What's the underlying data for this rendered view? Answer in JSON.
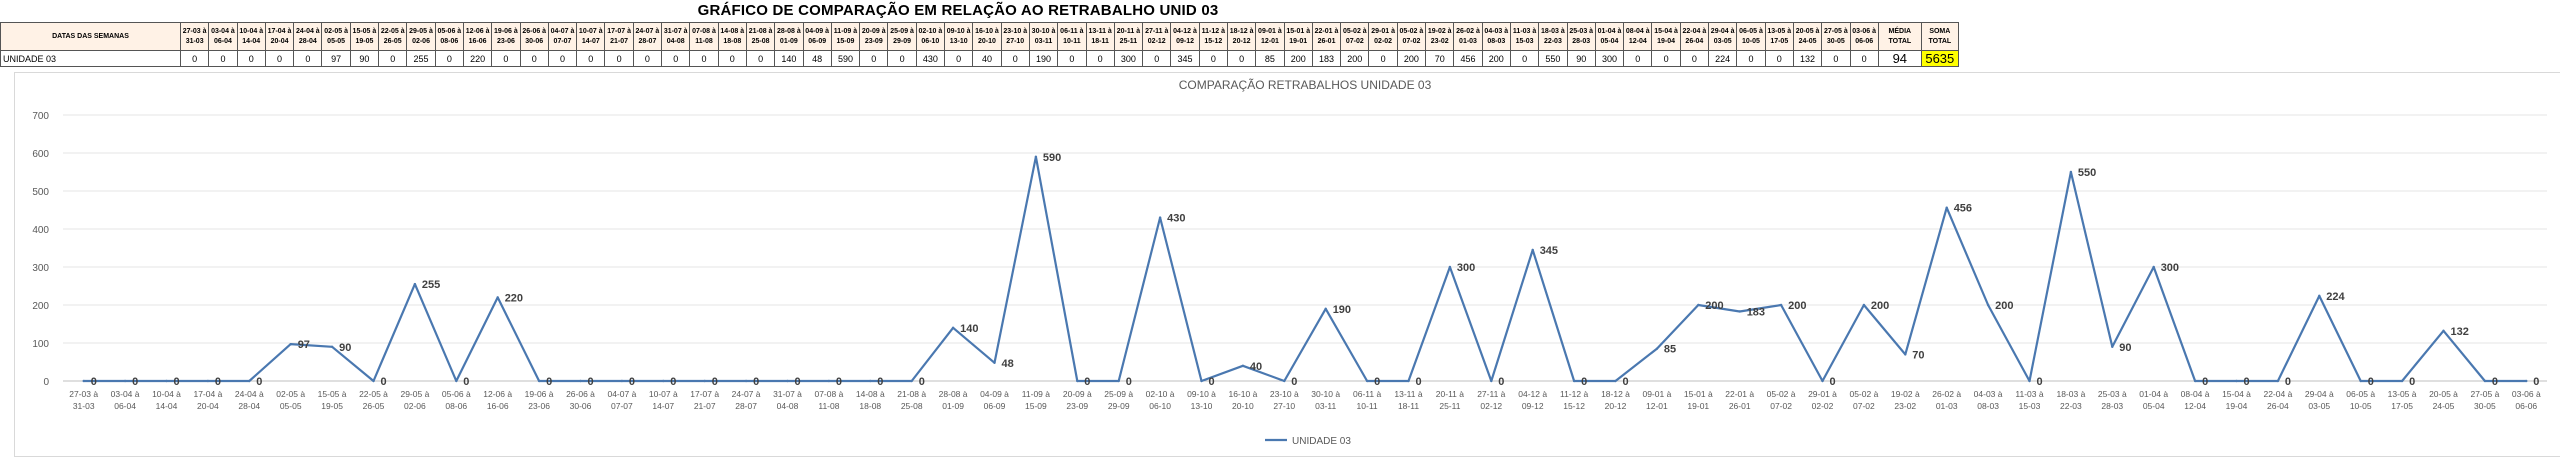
{
  "header": {
    "title": "GRÁFICO DE COMPARAÇÃO EM RELAÇÃO AO RETRABALHO UNID 03",
    "label_column_header": "DATAS DAS SEMANAS",
    "row_label": "UNIDADE 03",
    "media_header": "MÉDIA TOTAL",
    "media_value": "94",
    "soma_header": "SOMA TOTAL",
    "soma_value": "5635"
  },
  "chart_data": {
    "type": "line",
    "title": "COMPARAÇÃO RETRABALHOS UNIDADE 03",
    "xlabel": "",
    "ylabel": "",
    "ylim": [
      0,
      700
    ],
    "yticks": [
      0,
      100,
      200,
      300,
      400,
      500,
      600,
      700
    ],
    "grid": true,
    "legend_position": "bottom",
    "line_color": "#4a78b0",
    "categories": [
      "27-03 à 31-03",
      "03-04 à 06-04",
      "10-04 à 14-04",
      "17-04 à 20-04",
      "24-04 à 28-04",
      "02-05 à 05-05",
      "15-05 à 19-05",
      "22-05 à 26-05",
      "29-05 à 02-06",
      "05-06 à 08-06",
      "12-06 à 16-06",
      "19-06 à 23-06",
      "26-06 à 30-06",
      "04-07 à 07-07",
      "10-07 à 14-07",
      "17-07 à 21-07",
      "24-07 à 28-07",
      "31-07 à 04-08",
      "07-08 à 11-08",
      "14-08 à 18-08",
      "21-08 à 25-08",
      "28-08 à 01-09",
      "04-09 à 06-09",
      "11-09 à 15-09",
      "20-09 à 23-09",
      "25-09 à 29-09",
      "02-10 à 06-10",
      "09-10 à 13-10",
      "16-10 à 20-10",
      "23-10 à 27-10",
      "30-10 à 03-11",
      "06-11 à 10-11",
      "13-11 à 18-11",
      "20-11 à 25-11",
      "27-11 à 02-12",
      "04-12 à 09-12",
      "11-12 à 15-12",
      "18-12 à 20-12",
      "09-01 à 12-01",
      "15-01 à 19-01",
      "22-01 à 26-01",
      "05-02 à 07-02",
      "29-01 à 02-02",
      "05-02 à 07-02",
      "19-02 à 23-02",
      "26-02 à 01-03",
      "04-03 à 08-03",
      "11-03 à 15-03",
      "18-03 à 22-03",
      "25-03 à 28-03",
      "01-04 à 05-04",
      "08-04 à 12-04",
      "15-04 à 19-04",
      "22-04 à 26-04",
      "29-04 à 03-05",
      "06-05 à 10-05",
      "13-05 à 17-05",
      "20-05 à 24-05",
      "27-05 à 30-05",
      "03-06 à 06-06"
    ],
    "series": [
      {
        "name": "UNIDADE 03",
        "values": [
          0,
          0,
          0,
          0,
          0,
          97,
          90,
          0,
          255,
          0,
          220,
          0,
          0,
          0,
          0,
          0,
          0,
          0,
          0,
          0,
          0,
          140,
          48,
          590,
          0,
          0,
          430,
          0,
          40,
          0,
          190,
          0,
          0,
          300,
          0,
          345,
          0,
          0,
          85,
          200,
          183,
          200,
          0,
          200,
          70,
          456,
          200,
          0,
          550,
          90,
          300,
          0,
          0,
          0,
          224,
          0,
          0,
          132,
          0,
          0
        ]
      }
    ],
    "data_labels": [
      "0",
      "0",
      "0",
      "0",
      "0",
      "97",
      "90",
      "0",
      "255",
      "0",
      "220",
      "0",
      "0",
      "0",
      "0",
      "0",
      "0",
      "0",
      "0",
      "0",
      "0",
      "140",
      "48",
      "590",
      "0",
      "0",
      "430",
      "0",
      "40",
      "0",
      "190",
      "0",
      "0",
      "300",
      "0",
      "345",
      "0",
      "0",
      "85",
      "200",
      "183",
      "200",
      "0",
      "200",
      "70",
      "456",
      "200",
      "0",
      "550",
      "90",
      "300",
      "0",
      "0",
      "0",
      "224",
      "0",
      "0",
      "132",
      "0",
      "0"
    ],
    "table_values": [
      "0",
      "0",
      "0",
      "0",
      "0",
      "97",
      "90",
      "0",
      "255",
      "0",
      "220",
      "0",
      "0",
      "0",
      "0",
      "0",
      "0",
      "0",
      "0",
      "0",
      "0",
      "140",
      "48",
      "590",
      "0",
      "0",
      "430",
      "0",
      "40",
      "0",
      "190",
      "0",
      "0",
      "300",
      "0",
      "345",
      "0",
      "0",
      "85",
      "200",
      "183",
      "200",
      "0",
      "200",
      "70",
      "456",
      "200",
      "0",
      "550",
      "90",
      "300",
      "0",
      "0",
      "0",
      "224",
      "0",
      "0",
      "132",
      "0",
      "0"
    ]
  }
}
